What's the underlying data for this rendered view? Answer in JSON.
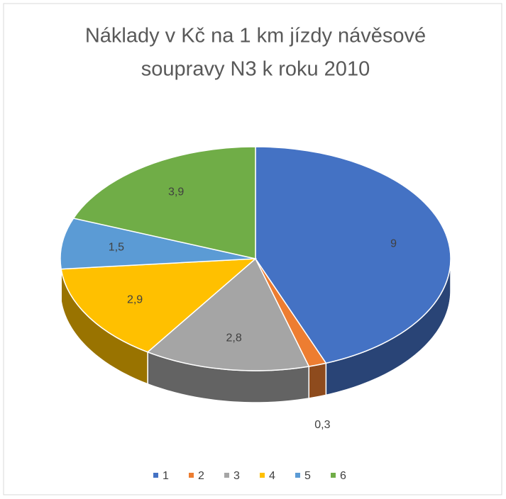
{
  "chart_data": {
    "type": "pie3d",
    "title": [
      "Náklady v Kč na 1 km jízdy návěsové",
      "soupravy N3 k roku 2010"
    ],
    "categories": [
      "1",
      "2",
      "3",
      "4",
      "5",
      "6"
    ],
    "values": [
      9,
      0.3,
      2.8,
      2.9,
      1.5,
      3.9
    ],
    "value_labels": [
      "9",
      "0,3",
      "2,8",
      "2,9",
      "1,5",
      "3,9"
    ],
    "colors": [
      "#4472c4",
      "#ed7d31",
      "#a5a5a5",
      "#ffc000",
      "#5b9bd5",
      "#70ad47"
    ],
    "legend": "bottom"
  }
}
